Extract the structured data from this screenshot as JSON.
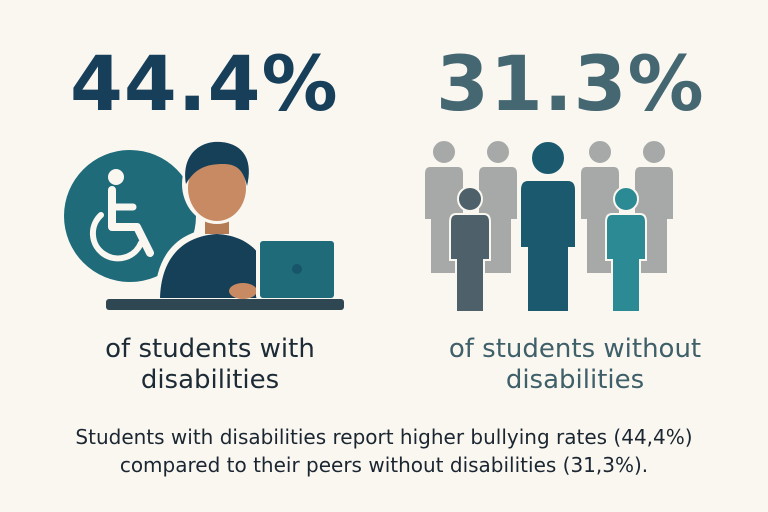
{
  "left": {
    "stat": "44.4%",
    "label": "of students with disabilities"
  },
  "right": {
    "stat": "31.3%",
    "label": "of students without disabilities"
  },
  "caption": "Students with disabilities report higher bullying rates (44,4%) compared to their peers without disabilities (31,3%).",
  "icons": [
    "wheelchair-icon",
    "person-laptop-icon",
    "group-of-people-icon"
  ],
  "colors": {
    "background": "#faf7f1",
    "dark_teal": "#173f5a",
    "teal": "#1f6b7a",
    "light_teal": "#2b8a94",
    "gray": "#a7a9a8",
    "slate": "#4e616a",
    "skin": "#c88a63"
  }
}
